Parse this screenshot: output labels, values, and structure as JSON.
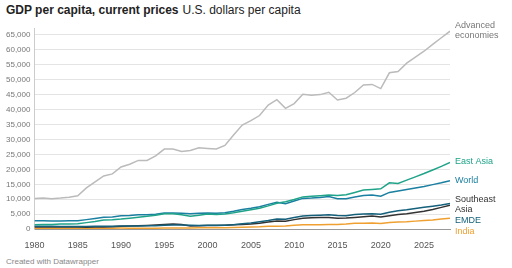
{
  "chart_data": {
    "type": "line",
    "title": "GDP per capita, current prices",
    "subtitle": "U.S. dollars per capita",
    "credit": "Created with Datawrapper",
    "x": [
      1980,
      1981,
      1982,
      1983,
      1984,
      1985,
      1986,
      1987,
      1988,
      1989,
      1990,
      1991,
      1992,
      1993,
      1994,
      1995,
      1996,
      1997,
      1998,
      1999,
      2000,
      2001,
      2002,
      2003,
      2004,
      2005,
      2006,
      2007,
      2008,
      2009,
      2010,
      2011,
      2012,
      2013,
      2014,
      2015,
      2016,
      2017,
      2018,
      2019,
      2020,
      2021,
      2022,
      2023,
      2024,
      2025,
      2026,
      2027,
      2028
    ],
    "series": [
      {
        "name": "Advanced economies",
        "color": "#bbbbbb",
        "values": [
          10300,
          10400,
          10200,
          10400,
          10700,
          11200,
          13800,
          15800,
          17800,
          18500,
          20800,
          21700,
          23000,
          23000,
          24500,
          26800,
          26800,
          26000,
          26300,
          27200,
          27000,
          26800,
          28000,
          31500,
          34800,
          36300,
          38000,
          41500,
          43300,
          40400,
          42000,
          45100,
          44800,
          45000,
          45800,
          43200,
          43800,
          45700,
          48200,
          48400,
          47000,
          52300,
          52700,
          55500,
          57500,
          59500,
          61800,
          64000,
          66200
        ]
      },
      {
        "name": "East Asia",
        "color": "#1fa389",
        "values": [
          1500,
          1600,
          1600,
          1700,
          1700,
          1800,
          2200,
          2600,
          3100,
          3200,
          3400,
          3700,
          4000,
          4300,
          4700,
          5200,
          5200,
          4800,
          4300,
          4700,
          5100,
          4900,
          5100,
          5500,
          6000,
          6500,
          7000,
          7800,
          8700,
          9200,
          9900,
          10800,
          11000,
          11200,
          11400,
          11300,
          11500,
          12300,
          13100,
          13300,
          13500,
          15500,
          15300,
          16400,
          17500,
          18600,
          19800,
          21000,
          22300
        ]
      },
      {
        "name": "World",
        "color": "#1a7fa0",
        "values": [
          2800,
          2800,
          2700,
          2700,
          2800,
          2800,
          3200,
          3600,
          4000,
          4100,
          4500,
          4600,
          4800,
          4800,
          5000,
          5400,
          5400,
          5300,
          5200,
          5300,
          5400,
          5300,
          5500,
          6000,
          6600,
          7000,
          7500,
          8300,
          9000,
          8500,
          9400,
          10300,
          10400,
          10600,
          10900,
          10200,
          10200,
          10800,
          11300,
          11400,
          11000,
          12300,
          12800,
          13300,
          13800,
          14300,
          14900,
          15500,
          16200
        ]
      },
      {
        "name": "EMDE",
        "color": "#15607a",
        "values": [
          1000,
          1000,
          950,
          900,
          900,
          900,
          900,
          950,
          1000,
          1000,
          1100,
          1050,
          1100,
          1150,
          1150,
          1300,
          1400,
          1400,
          1300,
          1250,
          1350,
          1350,
          1350,
          1500,
          1800,
          2100,
          2500,
          2900,
          3400,
          3300,
          3900,
          4400,
          4600,
          4700,
          4800,
          4600,
          4500,
          4900,
          5100,
          5200,
          5000,
          5700,
          6200,
          6500,
          6900,
          7300,
          7700,
          8100,
          8600
        ]
      },
      {
        "name": "Southeast Asia",
        "color": "#333333",
        "values": [
          700,
          700,
          700,
          700,
          700,
          700,
          650,
          700,
          750,
          850,
          950,
          1050,
          1150,
          1250,
          1400,
          1600,
          1700,
          1550,
          1050,
          1150,
          1250,
          1200,
          1300,
          1450,
          1600,
          1750,
          2000,
          2400,
          2750,
          2650,
          3200,
          3650,
          3850,
          3950,
          3950,
          3700,
          3750,
          3950,
          4200,
          4400,
          4100,
          4500,
          4900,
          5200,
          5600,
          6000,
          6600,
          7300,
          8000
        ]
      },
      {
        "name": "India",
        "color": "#f0a030",
        "values": [
          300,
          300,
          300,
          300,
          300,
          300,
          300,
          350,
          350,
          350,
          370,
          330,
          330,
          300,
          350,
          380,
          400,
          420,
          420,
          450,
          450,
          460,
          480,
          550,
          620,
          700,
          800,
          1000,
          1000,
          1100,
          1350,
          1450,
          1450,
          1450,
          1550,
          1600,
          1700,
          1950,
          2000,
          2050,
          1900,
          2250,
          2400,
          2500,
          2700,
          2900,
          3100,
          3400,
          3700
        ]
      }
    ],
    "xlim": [
      1980,
      2028
    ],
    "xticks": [
      1980,
      1985,
      1990,
      1995,
      2000,
      2005,
      2010,
      2015,
      2020,
      2025
    ],
    "ylim": [
      0,
      67000
    ],
    "yticks": [
      0,
      {
        "value": 5000,
        "label": "5,000"
      },
      {
        "value": 10000,
        "label": "10,000"
      },
      {
        "value": 15000,
        "label": "15,000"
      },
      {
        "value": 20000,
        "label": "20,000"
      },
      {
        "value": 25000,
        "label": "25,000"
      },
      {
        "value": 30000,
        "label": "30,000"
      },
      {
        "value": 35000,
        "label": "35,000"
      },
      {
        "value": 40000,
        "label": "40,000"
      },
      {
        "value": 45000,
        "label": "45,000"
      },
      {
        "value": 50000,
        "label": "50,000"
      },
      {
        "value": 55000,
        "label": "55,000"
      },
      {
        "value": 60000,
        "label": "60,000"
      },
      {
        "value": 65000,
        "label": "65,000"
      }
    ],
    "grid": true
  }
}
